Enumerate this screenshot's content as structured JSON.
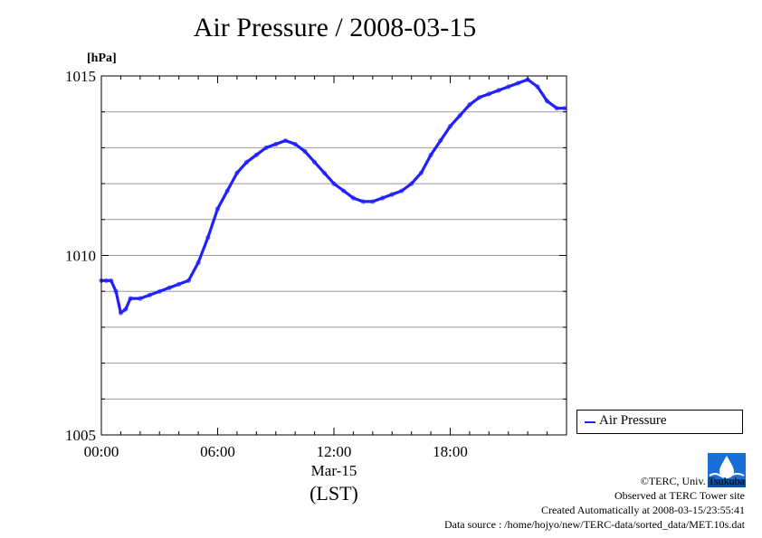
{
  "title": "Air Pressure / 2008-03-15",
  "credits": {
    "copyright": "©TERC, Univ. Tsukuba",
    "site": "Observed at TERC Tower site",
    "created": "Created Automatically at 2008-03-15/23:55:41",
    "source": "Data source : /home/hojyo/new/TERC-data/sorted_data/MET.10s.dat"
  },
  "logo_text": "TERC",
  "colors": {
    "series": "#2020ff",
    "grid": "#999999",
    "axis": "#000000"
  },
  "chart_data": {
    "type": "line",
    "title": "Air Pressure / 2008-03-15",
    "ylabel": "[hPa]",
    "xlabel": "(LST)",
    "date_label": "Mar-15",
    "xlim": [
      0,
      24
    ],
    "ylim": [
      1005,
      1015
    ],
    "x_ticks": [
      {
        "x": 0,
        "label": "00:00"
      },
      {
        "x": 6,
        "label": "06:00"
      },
      {
        "x": 12,
        "label": "12:00"
      },
      {
        "x": 18,
        "label": "18:00"
      }
    ],
    "y_ticks": [
      {
        "y": 1005,
        "label": "1005"
      },
      {
        "y": 1010,
        "label": "1010"
      },
      {
        "y": 1015,
        "label": "1015"
      }
    ],
    "y_grid": [
      1006,
      1007,
      1008,
      1009,
      1010,
      1011,
      1012,
      1013,
      1014
    ],
    "grid": true,
    "legend": "right",
    "series": [
      {
        "name": "Air Pressure",
        "color": "#2020ff",
        "x": [
          0,
          0.25,
          0.5,
          0.75,
          1.0,
          1.25,
          1.5,
          2.0,
          2.5,
          3.0,
          3.5,
          4.0,
          4.5,
          5.0,
          5.5,
          6.0,
          6.5,
          7.0,
          7.5,
          8.0,
          8.5,
          9.0,
          9.5,
          10.0,
          10.5,
          11.0,
          11.5,
          12.0,
          12.5,
          13.0,
          13.5,
          14.0,
          14.5,
          15.0,
          15.5,
          16.0,
          16.5,
          17.0,
          17.5,
          18.0,
          18.5,
          19.0,
          19.5,
          20.0,
          20.5,
          21.0,
          21.5,
          22.0,
          22.5,
          23.0,
          23.5,
          23.9
        ],
        "values": [
          1009.3,
          1009.3,
          1009.3,
          1009.0,
          1008.4,
          1008.5,
          1008.8,
          1008.8,
          1008.9,
          1009.0,
          1009.1,
          1009.2,
          1009.3,
          1009.8,
          1010.5,
          1011.3,
          1011.8,
          1012.3,
          1012.6,
          1012.8,
          1013.0,
          1013.1,
          1013.2,
          1013.1,
          1012.9,
          1012.6,
          1012.3,
          1012.0,
          1011.8,
          1011.6,
          1011.5,
          1011.5,
          1011.6,
          1011.7,
          1011.8,
          1012.0,
          1012.3,
          1012.8,
          1013.2,
          1013.6,
          1013.9,
          1014.2,
          1014.4,
          1014.5,
          1014.6,
          1014.7,
          1014.8,
          1014.9,
          1014.7,
          1014.3,
          1014.1,
          1014.1
        ]
      }
    ]
  }
}
